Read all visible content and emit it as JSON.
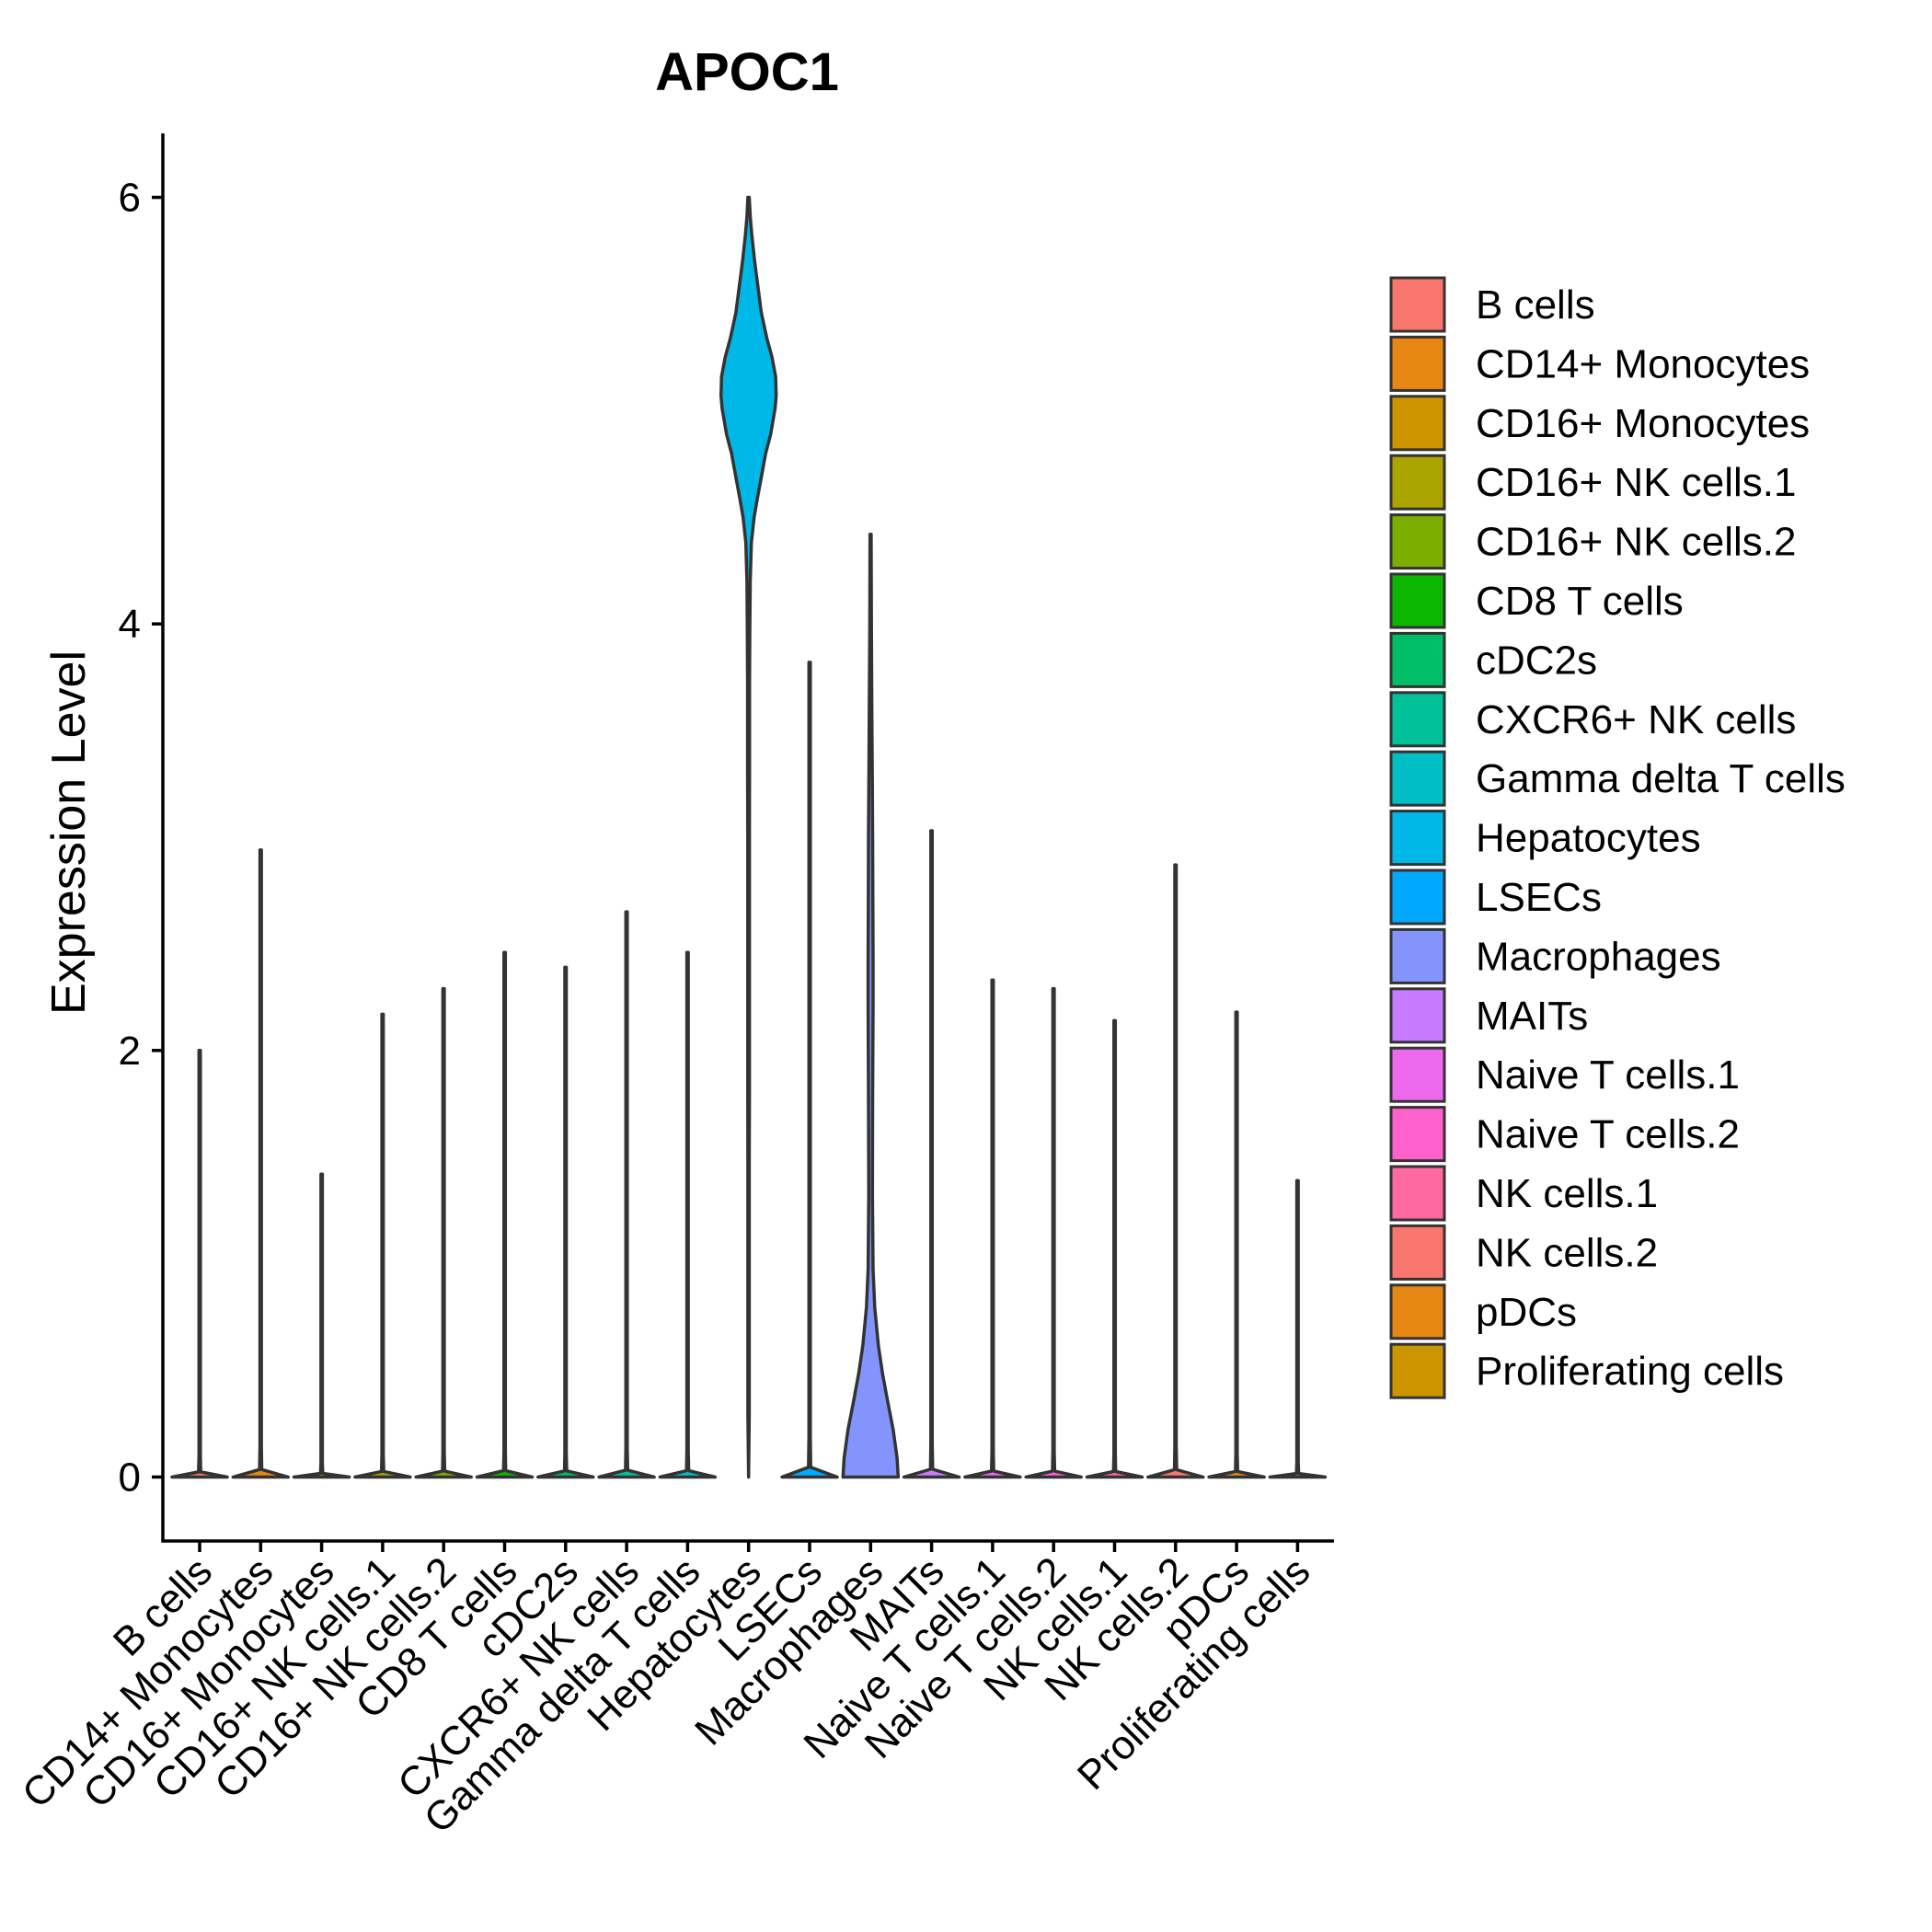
{
  "chart_data": {
    "type": "violin",
    "title": "APOC1",
    "xlabel": "",
    "ylabel": "Expression Level",
    "ylim": [
      -0.3,
      6.3
    ],
    "yticks": [
      0,
      2,
      4,
      6
    ],
    "legend_position": "right",
    "categories": [
      "B cells",
      "CD14+ Monocytes",
      "CD16+ Monocytes",
      "CD16+ NK cells.1",
      "CD16+ NK cells.2",
      "CD8 T cells",
      "cDC2s",
      "CXCR6+ NK cells",
      "Gamma delta T cells",
      "Hepatocytes",
      "LSECs",
      "Macrophages",
      "MAITs",
      "Naive T cells.1",
      "Naive T cells.2",
      "NK cells.1",
      "NK cells.2",
      "pDCs",
      "Proliferating cells"
    ],
    "colors": [
      "#F8766D",
      "#E68613",
      "#CD9600",
      "#ABA300",
      "#7CAE00",
      "#0CB702",
      "#00BE67",
      "#00C19A",
      "#00BFC4",
      "#00B8E7",
      "#00A9FF",
      "#8494FF",
      "#C77CFF",
      "#ED68ED",
      "#FF61CC",
      "#FF68A1",
      "#F8766D",
      "#E68613",
      "#CD9600"
    ],
    "series": [
      {
        "name": "B cells",
        "min": 0,
        "max": 2.0,
        "profile": "zero"
      },
      {
        "name": "CD14+ Monocytes",
        "min": 0,
        "max": 2.94,
        "profile": "zero"
      },
      {
        "name": "CD16+ Monocytes",
        "min": 0,
        "max": 1.42,
        "profile": "zero"
      },
      {
        "name": "CD16+ NK cells.1",
        "min": 0,
        "max": 2.17,
        "profile": "zero"
      },
      {
        "name": "CD16+ NK cells.2",
        "min": 0,
        "max": 2.29,
        "profile": "zero"
      },
      {
        "name": "CD8 T cells",
        "min": 0,
        "max": 2.46,
        "profile": "zero"
      },
      {
        "name": "cDC2s",
        "min": 0,
        "max": 2.39,
        "profile": "zero"
      },
      {
        "name": "CXCR6+ NK cells",
        "min": 0,
        "max": 2.65,
        "profile": "zero"
      },
      {
        "name": "Gamma delta T cells",
        "min": 0,
        "max": 2.46,
        "profile": "zero"
      },
      {
        "name": "Hepatocytes",
        "min": 0,
        "max": 6.0,
        "profile": "high"
      },
      {
        "name": "LSECs",
        "min": 0,
        "max": 3.82,
        "profile": "zero"
      },
      {
        "name": "Macrophages",
        "min": 0,
        "max": 4.42,
        "profile": "bimodal"
      },
      {
        "name": "MAITs",
        "min": 0,
        "max": 3.03,
        "profile": "zero"
      },
      {
        "name": "Naive T cells.1",
        "min": 0,
        "max": 2.33,
        "profile": "zero"
      },
      {
        "name": "Naive T cells.2",
        "min": 0,
        "max": 2.29,
        "profile": "zero"
      },
      {
        "name": "NK cells.1",
        "min": 0,
        "max": 2.14,
        "profile": "zero"
      },
      {
        "name": "NK cells.2",
        "min": 0,
        "max": 2.87,
        "profile": "zero"
      },
      {
        "name": "pDCs",
        "min": 0,
        "max": 2.18,
        "profile": "zero"
      },
      {
        "name": "Proliferating cells",
        "min": 0,
        "max": 1.39,
        "profile": "zero"
      }
    ],
    "density_shapes": {
      "zero": [
        [
          0,
          1.0
        ],
        [
          0.012,
          0.04
        ],
        [
          0.05,
          0.025
        ],
        [
          1.0,
          0.025
        ]
      ],
      "high": [
        [
          0,
          0.0
        ],
        [
          0.05,
          0.025
        ],
        [
          0.25,
          0.025
        ],
        [
          0.3,
          0.03
        ],
        [
          0.5,
          0.03
        ],
        [
          0.55,
          0.035
        ],
        [
          0.62,
          0.035
        ],
        [
          0.66,
          0.045
        ],
        [
          0.7,
          0.06
        ],
        [
          0.73,
          0.1
        ],
        [
          0.75,
          0.2
        ],
        [
          0.765,
          0.32
        ],
        [
          0.78,
          0.45
        ],
        [
          0.8,
          0.62
        ],
        [
          0.815,
          0.8
        ],
        [
          0.835,
          0.96
        ],
        [
          0.845,
          1.0
        ],
        [
          0.86,
          0.98
        ],
        [
          0.875,
          0.85
        ],
        [
          0.89,
          0.66
        ],
        [
          0.91,
          0.46
        ],
        [
          0.93,
          0.34
        ],
        [
          0.95,
          0.22
        ],
        [
          0.97,
          0.12
        ],
        [
          0.985,
          0.06
        ],
        [
          1.0,
          0.025
        ]
      ],
      "bimodal": [
        [
          0,
          1.0
        ],
        [
          0.02,
          0.96
        ],
        [
          0.05,
          0.82
        ],
        [
          0.08,
          0.62
        ],
        [
          0.11,
          0.43
        ],
        [
          0.14,
          0.28
        ],
        [
          0.18,
          0.15
        ],
        [
          0.22,
          0.09
        ],
        [
          0.3,
          0.065
        ],
        [
          0.4,
          0.075
        ],
        [
          0.5,
          0.09
        ],
        [
          0.55,
          0.09
        ],
        [
          0.6,
          0.085
        ],
        [
          0.68,
          0.075
        ],
        [
          0.75,
          0.06
        ],
        [
          0.82,
          0.045
        ],
        [
          0.9,
          0.03
        ],
        [
          1.0,
          0.02
        ]
      ]
    }
  }
}
